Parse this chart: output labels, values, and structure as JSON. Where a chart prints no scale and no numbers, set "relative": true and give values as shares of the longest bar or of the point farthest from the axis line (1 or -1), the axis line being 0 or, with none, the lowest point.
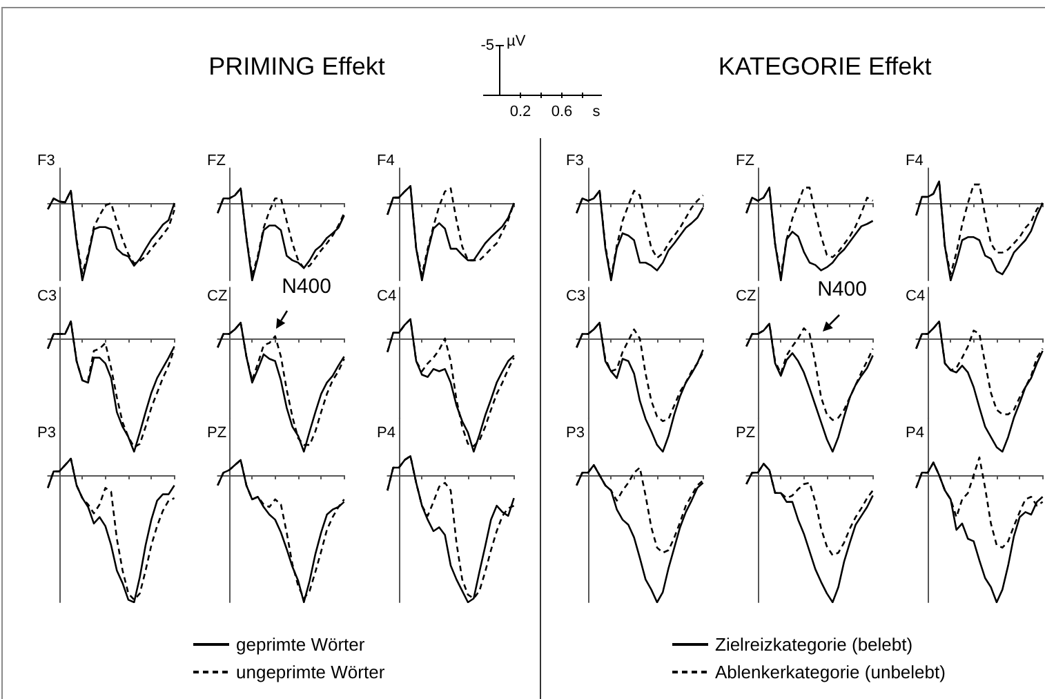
{
  "chart_data": [
    {
      "type": "other",
      "title": "PRIMING Effekt"
    },
    {
      "type": "other",
      "annotations": [
        "-5",
        "µV",
        "0.2",
        "0.6",
        "s"
      ]
    },
    {
      "type": "other",
      "title": "KATEGORIE Effekt"
    },
    {
      "type": "line",
      "title": "F3",
      "relative": true,
      "categories": [
        null,
        null,
        null,
        null,
        null,
        null,
        null,
        null,
        null,
        null,
        null,
        null,
        null,
        null,
        null,
        null,
        null,
        null,
        null,
        null,
        null,
        null,
        null
      ],
      "series": [
        {
          "color": "#000000",
          "line_style": "solid",
          "values": [
            -0.08,
            0.06,
            0.02,
            0.01,
            0.16,
            -0.5,
            -1,
            -0.69,
            -0.34,
            -0.31,
            -0.31,
            -0.34,
            -0.59,
            -0.66,
            -0.69,
            -0.81,
            -0.72,
            -0.59,
            -0.47,
            -0.38,
            -0.28,
            -0.22,
            0
          ]
        },
        {
          "color": "#000000",
          "line_style": "dashed",
          "values": [
            -0.08,
            0.06,
            0.02,
            0.01,
            0.16,
            -0.47,
            -0.91,
            -0.66,
            -0.31,
            -0.16,
            -0.03,
            0,
            -0.25,
            -0.47,
            -0.66,
            -0.78,
            -0.75,
            -0.69,
            -0.59,
            -0.5,
            -0.41,
            -0.31,
            -0.09
          ]
        }
      ]
    },
    {
      "type": "line",
      "title": "FZ",
      "relative": true,
      "categories": [
        null,
        null,
        null,
        null,
        null,
        null,
        null,
        null,
        null,
        null,
        null,
        null,
        null,
        null,
        null,
        null,
        null,
        null,
        null,
        null,
        null,
        null,
        null
      ],
      "series": [
        {
          "color": "#000000",
          "line_style": "solid",
          "values": [
            -0.13,
            0.06,
            0.06,
            0.1,
            0.19,
            -0.45,
            -1,
            -0.71,
            -0.35,
            -0.29,
            -0.29,
            -0.35,
            -0.68,
            -0.74,
            -0.77,
            -0.84,
            -0.74,
            -0.61,
            -0.55,
            -0.45,
            -0.39,
            -0.32,
            -0.16
          ]
        },
        {
          "color": "#000000",
          "line_style": "dashed",
          "values": [
            -0.13,
            0.06,
            0.06,
            0.1,
            0.19,
            -0.45,
            -0.94,
            -0.68,
            -0.32,
            -0.1,
            0.06,
            0.06,
            -0.23,
            -0.52,
            -0.74,
            -0.84,
            -0.81,
            -0.71,
            -0.61,
            -0.52,
            -0.42,
            -0.29,
            -0.13
          ]
        }
      ]
    },
    {
      "type": "line",
      "title": "F4",
      "relative": true,
      "categories": [
        null,
        null,
        null,
        null,
        null,
        null,
        null,
        null,
        null,
        null,
        null,
        null,
        null,
        null,
        null,
        null,
        null,
        null,
        null,
        null,
        null,
        null,
        null
      ],
      "series": [
        {
          "color": "#000000",
          "line_style": "solid",
          "values": [
            -0.15,
            0.07,
            0.07,
            0.15,
            0.22,
            -0.59,
            -1,
            -0.63,
            -0.33,
            -0.26,
            -0.33,
            -0.59,
            -0.59,
            -0.67,
            -0.74,
            -0.74,
            -0.63,
            -0.52,
            -0.44,
            -0.37,
            -0.3,
            -0.19,
            0
          ]
        },
        {
          "color": "#000000",
          "line_style": "dashed",
          "values": [
            -0.15,
            0.07,
            0.07,
            0.15,
            0.22,
            -0.59,
            -0.93,
            -0.59,
            -0.3,
            -0.04,
            0.15,
            0.19,
            -0.22,
            -0.56,
            -0.74,
            -0.74,
            -0.74,
            -0.67,
            -0.59,
            -0.52,
            -0.37,
            -0.22,
            0
          ]
        }
      ]
    },
    {
      "type": "line",
      "title": "C3",
      "relative": true,
      "categories": [
        null,
        null,
        null,
        null,
        null,
        null,
        null,
        null,
        null,
        null,
        null,
        null,
        null,
        null,
        null,
        null,
        null,
        null,
        null,
        null,
        null,
        null,
        null
      ],
      "series": [
        {
          "color": "#000000",
          "line_style": "solid",
          "values": [
            -0.09,
            0.04,
            0.04,
            0.04,
            0.15,
            -0.2,
            -0.37,
            -0.39,
            -0.17,
            -0.17,
            -0.22,
            -0.35,
            -0.65,
            -0.78,
            -0.87,
            -1,
            -0.83,
            -0.65,
            -0.48,
            -0.35,
            -0.26,
            -0.17,
            -0.07
          ]
        },
        {
          "color": "#000000",
          "line_style": "dashed",
          "values": [
            -0.09,
            0.04,
            0.04,
            0.04,
            0.15,
            -0.2,
            -0.37,
            -0.37,
            -0.11,
            -0.09,
            -0.04,
            -0.26,
            -0.52,
            -0.74,
            -0.87,
            -0.96,
            -0.93,
            -0.78,
            -0.61,
            -0.48,
            -0.35,
            -0.24,
            -0.09
          ]
        }
      ]
    },
    {
      "type": "line",
      "title": "CZ",
      "relative": true,
      "annotations": [
        "N400"
      ],
      "categories": [
        null,
        null,
        null,
        null,
        null,
        null,
        null,
        null,
        null,
        null,
        null,
        null,
        null,
        null,
        null,
        null,
        null,
        null,
        null,
        null,
        null,
        null,
        null
      ],
      "series": [
        {
          "color": "#000000",
          "line_style": "solid",
          "values": [
            -0.08,
            0.04,
            0.04,
            0.08,
            0.14,
            -0.16,
            -0.39,
            -0.27,
            -0.14,
            -0.18,
            -0.2,
            -0.37,
            -0.61,
            -0.78,
            -0.86,
            -1,
            -0.82,
            -0.65,
            -0.49,
            -0.39,
            -0.33,
            -0.24,
            -0.16
          ]
        },
        {
          "color": "#000000",
          "line_style": "dashed",
          "values": [
            -0.08,
            0.04,
            0.04,
            0.08,
            0.14,
            -0.16,
            -0.37,
            -0.22,
            -0.06,
            -0.04,
            0.02,
            -0.16,
            -0.45,
            -0.69,
            -0.88,
            -0.94,
            -0.94,
            -0.82,
            -0.65,
            -0.49,
            -0.37,
            -0.29,
            -0.18
          ]
        }
      ]
    },
    {
      "type": "line",
      "title": "C4",
      "relative": true,
      "categories": [
        null,
        null,
        null,
        null,
        null,
        null,
        null,
        null,
        null,
        null,
        null,
        null,
        null,
        null,
        null,
        null,
        null,
        null,
        null,
        null,
        null,
        null,
        null
      ],
      "series": [
        {
          "color": "#000000",
          "line_style": "solid",
          "values": [
            -0.12,
            0.05,
            0.05,
            0.12,
            0.17,
            -0.2,
            -0.32,
            -0.34,
            -0.27,
            -0.29,
            -0.27,
            -0.39,
            -0.59,
            -0.73,
            -0.83,
            -1,
            -0.85,
            -0.68,
            -0.54,
            -0.39,
            -0.29,
            -0.2,
            -0.15
          ]
        },
        {
          "color": "#000000",
          "line_style": "dashed",
          "values": [
            -0.12,
            0.05,
            0.05,
            0.12,
            0.17,
            -0.2,
            -0.29,
            -0.22,
            -0.17,
            -0.1,
            0,
            -0.2,
            -0.54,
            -0.78,
            -0.93,
            -0.95,
            -0.9,
            -0.78,
            -0.63,
            -0.49,
            -0.39,
            -0.27,
            -0.17
          ]
        }
      ]
    },
    {
      "type": "line",
      "title": "P3",
      "relative": true,
      "categories": [
        null,
        null,
        null,
        null,
        null,
        null,
        null,
        null,
        null,
        null,
        null,
        null,
        null,
        null,
        null,
        null,
        null,
        null,
        null,
        null,
        null,
        null,
        null
      ],
      "series": [
        {
          "color": "#000000",
          "line_style": "solid",
          "values": [
            -0.1,
            0.03,
            0.03,
            0.08,
            0.13,
            -0.08,
            -0.18,
            -0.25,
            -0.38,
            -0.33,
            -0.4,
            -0.55,
            -0.75,
            -0.85,
            -0.98,
            -1,
            -0.8,
            -0.55,
            -0.35,
            -0.2,
            -0.15,
            -0.15,
            -0.08
          ]
        },
        {
          "color": "#000000",
          "line_style": "dashed",
          "values": [
            -0.1,
            0.03,
            0.03,
            0.08,
            0.13,
            -0.08,
            -0.18,
            -0.23,
            -0.3,
            -0.23,
            -0.1,
            -0.13,
            -0.5,
            -0.75,
            -0.93,
            -0.98,
            -0.93,
            -0.75,
            -0.55,
            -0.4,
            -0.28,
            -0.2,
            -0.18
          ]
        }
      ]
    },
    {
      "type": "line",
      "title": "PZ",
      "relative": true,
      "legend": "bottom",
      "categories": [
        null,
        null,
        null,
        null,
        null,
        null,
        null,
        null,
        null,
        null,
        null,
        null,
        null,
        null,
        null,
        null,
        null,
        null,
        null,
        null,
        null,
        null,
        null
      ],
      "series": [
        {
          "name": "geprimte Wörter",
          "color": "#000000",
          "line_style": "solid",
          "values": [
            -0.08,
            0.02,
            0.04,
            0.08,
            0.12,
            -0.08,
            -0.19,
            -0.17,
            -0.25,
            -0.31,
            -0.35,
            -0.45,
            -0.58,
            -0.72,
            -0.83,
            -1,
            -0.83,
            -0.62,
            -0.45,
            -0.31,
            -0.27,
            -0.25,
            -0.21
          ]
        },
        {
          "name": "ungeprimte Wörter",
          "color": "#000000",
          "line_style": "dashed",
          "values": [
            -0.08,
            0.02,
            0.04,
            0.08,
            0.12,
            -0.08,
            -0.19,
            -0.17,
            -0.23,
            -0.25,
            -0.19,
            -0.23,
            -0.45,
            -0.7,
            -0.87,
            -0.97,
            -0.91,
            -0.76,
            -0.6,
            -0.43,
            -0.33,
            -0.25,
            -0.19
          ]
        }
      ]
    },
    {
      "type": "line",
      "title": "P4",
      "relative": true,
      "categories": [
        null,
        null,
        null,
        null,
        null,
        null,
        null,
        null,
        null,
        null,
        null,
        null,
        null,
        null,
        null,
        null,
        null,
        null,
        null,
        null,
        null,
        null,
        null
      ],
      "series": [
        {
          "color": "#000000",
          "line_style": "solid",
          "values": [
            -0.12,
            0.06,
            0.06,
            0.12,
            0.15,
            -0.06,
            -0.24,
            -0.35,
            -0.44,
            -0.41,
            -0.47,
            -0.71,
            -0.82,
            -0.91,
            -1,
            -0.97,
            -0.76,
            -0.56,
            -0.35,
            -0.24,
            -0.29,
            -0.32,
            -0.18
          ]
        },
        {
          "color": "#000000",
          "line_style": "dashed",
          "values": [
            -0.12,
            0.06,
            0.06,
            0.12,
            0.15,
            -0.06,
            -0.24,
            -0.32,
            -0.21,
            -0.09,
            -0.06,
            -0.12,
            -0.53,
            -0.82,
            -0.94,
            -0.97,
            -0.91,
            -0.76,
            -0.59,
            -0.44,
            -0.32,
            -0.26,
            -0.24
          ]
        }
      ]
    },
    {
      "type": "line",
      "title": "F3",
      "relative": true,
      "categories": [
        null,
        null,
        null,
        null,
        null,
        null,
        null,
        null,
        null,
        null,
        null,
        null,
        null,
        null,
        null,
        null,
        null,
        null,
        null,
        null,
        null,
        null,
        null
      ],
      "series": [
        {
          "color": "#000000",
          "line_style": "solid",
          "values": [
            -0.13,
            0.06,
            0.03,
            0.06,
            0.16,
            -0.58,
            -1,
            -0.58,
            -0.39,
            -0.42,
            -0.48,
            -0.77,
            -0.77,
            -0.81,
            -0.87,
            -0.77,
            -0.61,
            -0.52,
            -0.42,
            -0.32,
            -0.26,
            -0.19,
            -0.06
          ]
        },
        {
          "color": "#000000",
          "line_style": "dashed",
          "values": [
            -0.13,
            0.06,
            0.03,
            0.06,
            0.16,
            -0.55,
            -0.97,
            -0.55,
            -0.23,
            -0.03,
            0.16,
            0.1,
            -0.26,
            -0.58,
            -0.71,
            -0.65,
            -0.52,
            -0.42,
            -0.32,
            -0.19,
            -0.06,
            0.03,
            0.1
          ]
        }
      ]
    },
    {
      "type": "line",
      "title": "FZ",
      "relative": true,
      "categories": [
        null,
        null,
        null,
        null,
        null,
        null,
        null,
        null,
        null,
        null,
        null,
        null,
        null,
        null,
        null,
        null,
        null,
        null,
        null,
        null,
        null,
        null,
        null
      ],
      "series": [
        {
          "color": "#000000",
          "line_style": "solid",
          "values": [
            -0.13,
            0.07,
            0.03,
            0.07,
            0.2,
            -0.53,
            -1,
            -0.47,
            -0.37,
            -0.43,
            -0.63,
            -0.77,
            -0.8,
            -0.87,
            -0.83,
            -0.77,
            -0.67,
            -0.6,
            -0.5,
            -0.4,
            -0.3,
            -0.27,
            -0.23
          ]
        },
        {
          "color": "#000000",
          "line_style": "dashed",
          "values": [
            -0.13,
            0.07,
            0.03,
            0.07,
            0.2,
            -0.53,
            -0.93,
            -0.47,
            -0.2,
            0,
            0.2,
            0.2,
            -0.13,
            -0.43,
            -0.67,
            -0.7,
            -0.63,
            -0.53,
            -0.43,
            -0.3,
            -0.13,
            0.07,
            0.03
          ]
        }
      ]
    },
    {
      "type": "line",
      "title": "F4",
      "relative": true,
      "categories": [
        null,
        null,
        null,
        null,
        null,
        null,
        null,
        null,
        null,
        null,
        null,
        null,
        null,
        null,
        null,
        null,
        null,
        null,
        null,
        null,
        null,
        null,
        null
      ],
      "series": [
        {
          "color": "#000000",
          "line_style": "solid",
          "values": [
            -0.16,
            0.08,
            0.08,
            0.12,
            0.28,
            -0.56,
            -1,
            -0.76,
            -0.48,
            -0.44,
            -0.44,
            -0.48,
            -0.68,
            -0.72,
            -0.88,
            -0.92,
            -0.8,
            -0.64,
            -0.56,
            -0.48,
            -0.36,
            -0.16,
            0
          ]
        },
        {
          "color": "#000000",
          "line_style": "dashed",
          "values": [
            -0.16,
            0.08,
            0.08,
            0.12,
            0.28,
            -0.56,
            -0.92,
            -0.64,
            -0.28,
            0,
            0.24,
            0.24,
            -0.16,
            -0.52,
            -0.64,
            -0.64,
            -0.6,
            -0.52,
            -0.44,
            -0.32,
            -0.24,
            -0.08,
            0
          ]
        }
      ]
    },
    {
      "type": "line",
      "title": "C3",
      "relative": true,
      "categories": [
        null,
        null,
        null,
        null,
        null,
        null,
        null,
        null,
        null,
        null,
        null,
        null,
        null,
        null,
        null,
        null,
        null,
        null,
        null,
        null,
        null,
        null,
        null
      ],
      "series": [
        {
          "color": "#000000",
          "line_style": "solid",
          "values": [
            -0.08,
            0.04,
            0.04,
            0.08,
            0.14,
            -0.2,
            -0.29,
            -0.35,
            -0.18,
            -0.2,
            -0.31,
            -0.55,
            -0.71,
            -0.82,
            -0.94,
            -1,
            -0.86,
            -0.67,
            -0.51,
            -0.39,
            -0.31,
            -0.22,
            -0.1
          ]
        },
        {
          "color": "#000000",
          "line_style": "dashed",
          "values": [
            -0.08,
            0.04,
            0.04,
            0.08,
            0.14,
            -0.18,
            -0.29,
            -0.27,
            -0.12,
            -0.02,
            0.08,
            0,
            -0.31,
            -0.55,
            -0.69,
            -0.73,
            -0.71,
            -0.59,
            -0.47,
            -0.39,
            -0.29,
            -0.22,
            -0.12
          ]
        }
      ]
    },
    {
      "type": "line",
      "title": "CZ",
      "relative": true,
      "annotations": [
        "N400"
      ],
      "categories": [
        null,
        null,
        null,
        null,
        null,
        null,
        null,
        null,
        null,
        null,
        null,
        null,
        null,
        null,
        null,
        null,
        null,
        null,
        null,
        null,
        null,
        null,
        null
      ],
      "series": [
        {
          "color": "#000000",
          "line_style": "solid",
          "values": [
            -0.07,
            0.04,
            0.04,
            0.07,
            0.13,
            -0.22,
            -0.33,
            -0.19,
            -0.13,
            -0.2,
            -0.3,
            -0.44,
            -0.59,
            -0.74,
            -0.89,
            -1,
            -0.87,
            -0.69,
            -0.52,
            -0.41,
            -0.33,
            -0.26,
            -0.15
          ]
        },
        {
          "color": "#000000",
          "line_style": "dashed",
          "values": [
            -0.07,
            0.04,
            0.04,
            0.07,
            0.13,
            -0.2,
            -0.31,
            -0.15,
            -0.07,
            0,
            0.09,
            0.04,
            -0.22,
            -0.52,
            -0.67,
            -0.72,
            -0.7,
            -0.63,
            -0.52,
            -0.41,
            -0.3,
            -0.2,
            -0.09
          ]
        }
      ]
    },
    {
      "type": "line",
      "title": "C4",
      "relative": true,
      "categories": [
        null,
        null,
        null,
        null,
        null,
        null,
        null,
        null,
        null,
        null,
        null,
        null,
        null,
        null,
        null,
        null,
        null,
        null,
        null,
        null,
        null,
        null,
        null
      ],
      "series": [
        {
          "color": "#000000",
          "line_style": "solid",
          "values": [
            -0.09,
            0.04,
            0.04,
            0.09,
            0.15,
            -0.22,
            -0.28,
            -0.3,
            -0.24,
            -0.3,
            -0.43,
            -0.61,
            -0.78,
            -0.87,
            -0.96,
            -1,
            -0.87,
            -0.7,
            -0.57,
            -0.43,
            -0.35,
            -0.22,
            -0.11
          ]
        },
        {
          "color": "#000000",
          "line_style": "dashed",
          "values": [
            -0.09,
            0.04,
            0.04,
            0.09,
            0.15,
            -0.22,
            -0.28,
            -0.26,
            -0.17,
            -0.07,
            0.07,
            0.04,
            -0.22,
            -0.48,
            -0.63,
            -0.67,
            -0.67,
            -0.63,
            -0.52,
            -0.43,
            -0.33,
            -0.17,
            -0.09
          ]
        }
      ]
    },
    {
      "type": "line",
      "title": "P3",
      "relative": true,
      "categories": [
        null,
        null,
        null,
        null,
        null,
        null,
        null,
        null,
        null,
        null,
        null,
        null,
        null,
        null,
        null,
        null,
        null,
        null,
        null,
        null,
        null,
        null,
        null
      ],
      "series": [
        {
          "color": "#000000",
          "line_style": "solid",
          "values": [
            -0.08,
            0.02,
            0.02,
            0.08,
            0,
            -0.08,
            -0.12,
            -0.27,
            -0.35,
            -0.39,
            -0.49,
            -0.65,
            -0.82,
            -0.9,
            -1,
            -0.92,
            -0.73,
            -0.57,
            -0.41,
            -0.29,
            -0.2,
            -0.1,
            -0.06
          ]
        },
        {
          "color": "#000000",
          "line_style": "dashed",
          "values": [
            -0.08,
            0.02,
            0.02,
            0.08,
            0,
            -0.08,
            -0.12,
            -0.2,
            -0.12,
            -0.06,
            0.02,
            0.06,
            -0.16,
            -0.41,
            -0.57,
            -0.61,
            -0.59,
            -0.49,
            -0.37,
            -0.24,
            -0.16,
            -0.08,
            -0.04
          ]
        }
      ]
    },
    {
      "type": "line",
      "title": "PZ",
      "relative": true,
      "legend": "bottom",
      "categories": [
        null,
        null,
        null,
        null,
        null,
        null,
        null,
        null,
        null,
        null,
        null,
        null,
        null,
        null,
        null,
        null,
        null,
        null,
        null,
        null,
        null,
        null,
        null
      ],
      "series": [
        {
          "name": "Zielreizkategorie (belebt)",
          "color": "#000000",
          "line_style": "solid",
          "values": [
            -0.07,
            0.02,
            0.02,
            0.09,
            0.04,
            -0.14,
            -0.14,
            -0.21,
            -0.21,
            -0.35,
            -0.46,
            -0.6,
            -0.74,
            -0.84,
            -0.93,
            -1,
            -0.88,
            -0.68,
            -0.53,
            -0.39,
            -0.32,
            -0.25,
            -0.16
          ]
        },
        {
          "name": "Ablenkerkategorie (unbelebt)",
          "color": "#000000",
          "line_style": "dashed",
          "values": [
            -0.07,
            0.02,
            0.02,
            0.09,
            0.04,
            -0.14,
            -0.14,
            -0.18,
            -0.16,
            -0.11,
            -0.07,
            -0.06,
            -0.21,
            -0.42,
            -0.56,
            -0.63,
            -0.61,
            -0.53,
            -0.42,
            -0.33,
            -0.26,
            -0.18,
            -0.12
          ]
        }
      ]
    },
    {
      "type": "line",
      "title": "P4",
      "relative": true,
      "categories": [
        null,
        null,
        null,
        null,
        null,
        null,
        null,
        null,
        null,
        null,
        null,
        null,
        null,
        null,
        null,
        null,
        null,
        null,
        null,
        null,
        null,
        null,
        null
      ],
      "series": [
        {
          "color": "#000000",
          "line_style": "solid",
          "values": [
            -0.1,
            0.02,
            0.02,
            0.1,
            0,
            -0.12,
            -0.19,
            -0.43,
            -0.38,
            -0.5,
            -0.52,
            -0.67,
            -0.81,
            -0.88,
            -1,
            -0.9,
            -0.71,
            -0.48,
            -0.33,
            -0.29,
            -0.31,
            -0.21,
            -0.17
          ]
        },
        {
          "color": "#000000",
          "line_style": "dashed",
          "values": [
            -0.1,
            0.02,
            0.02,
            0.1,
            0,
            -0.12,
            -0.19,
            -0.33,
            -0.19,
            -0.14,
            0,
            0.14,
            -0.1,
            -0.38,
            -0.55,
            -0.57,
            -0.52,
            -0.4,
            -0.29,
            -0.19,
            -0.17,
            -0.24,
            -0.21
          ]
        }
      ]
    }
  ]
}
